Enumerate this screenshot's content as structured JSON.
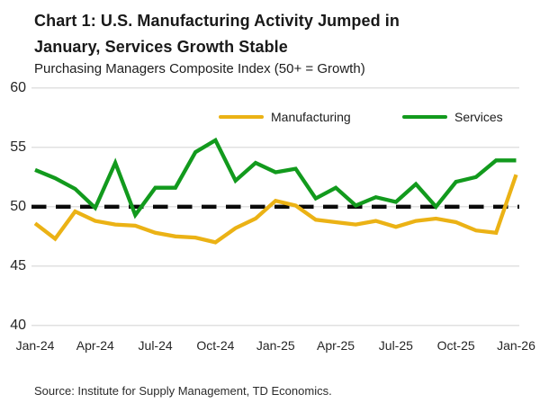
{
  "header": {
    "title_line1": "Chart 1: U.S. Manufacturing Activity Jumped in",
    "title_line2": "January, Services Growth Stable",
    "subtitle": "Purchasing Managers Composite Index (50+ = Growth)"
  },
  "legend": [
    {
      "label": "Manufacturing",
      "color": "#EBB215"
    },
    {
      "label": "Services",
      "color": "#129A1D"
    }
  ],
  "footer": {
    "source": "Source: Institute for Supply Management, TD Economics."
  },
  "colors": {
    "manufacturing": "#EBB215",
    "services": "#129A1D",
    "reference_line": "#0a0a0a",
    "gridline": "#d7d7d7",
    "text": "#1d1d1d"
  },
  "chart_data": {
    "type": "line",
    "title": "Chart 1: U.S. Manufacturing Activity Jumped in January, Services Growth Stable",
    "subtitle": "Purchasing Managers Composite Index (50+ = Growth)",
    "months": [
      "Jan-24",
      "Feb-24",
      "Mar-24",
      "Apr-24",
      "May-24",
      "Jun-24",
      "Jul-24",
      "Aug-24",
      "Sep-24",
      "Oct-24",
      "Nov-24",
      "Dec-24",
      "Jan-25",
      "Feb-25",
      "Mar-25",
      "Apr-25",
      "May-25",
      "Jun-25",
      "Jul-25",
      "Aug-25",
      "Sep-25",
      "Oct-25",
      "Nov-25",
      "Dec-25",
      "Jan-26"
    ],
    "x_tick_labels": [
      "Jan-24",
      "Apr-24",
      "Jul-24",
      "Oct-24",
      "Jan-25",
      "Apr-25",
      "Jul-25",
      "Oct-25",
      "Jan-26"
    ],
    "yticks": [
      60,
      55,
      50,
      45,
      40
    ],
    "ylim": [
      40,
      60
    ],
    "reference_line": 50,
    "grid": "horizontal-only",
    "legend_position": "top-inside",
    "series": [
      {
        "name": "Manufacturing",
        "color": "#EBB215",
        "values": [
          48.6,
          47.3,
          49.6,
          48.8,
          48.5,
          48.4,
          47.8,
          47.5,
          47.4,
          47.0,
          48.2,
          49.0,
          50.5,
          50.1,
          48.9,
          48.7,
          48.5,
          48.8,
          48.3,
          48.8,
          49.0,
          48.7,
          48.0,
          47.8,
          52.7
        ]
      },
      {
        "name": "Services",
        "color": "#129A1D",
        "values": [
          53.1,
          52.4,
          51.5,
          49.9,
          53.7,
          49.3,
          51.6,
          51.6,
          54.6,
          55.6,
          52.2,
          53.7,
          52.9,
          53.2,
          50.7,
          51.6,
          50.1,
          50.8,
          50.4,
          51.9,
          50.0,
          52.1,
          52.5,
          53.9,
          53.9
        ]
      }
    ]
  }
}
